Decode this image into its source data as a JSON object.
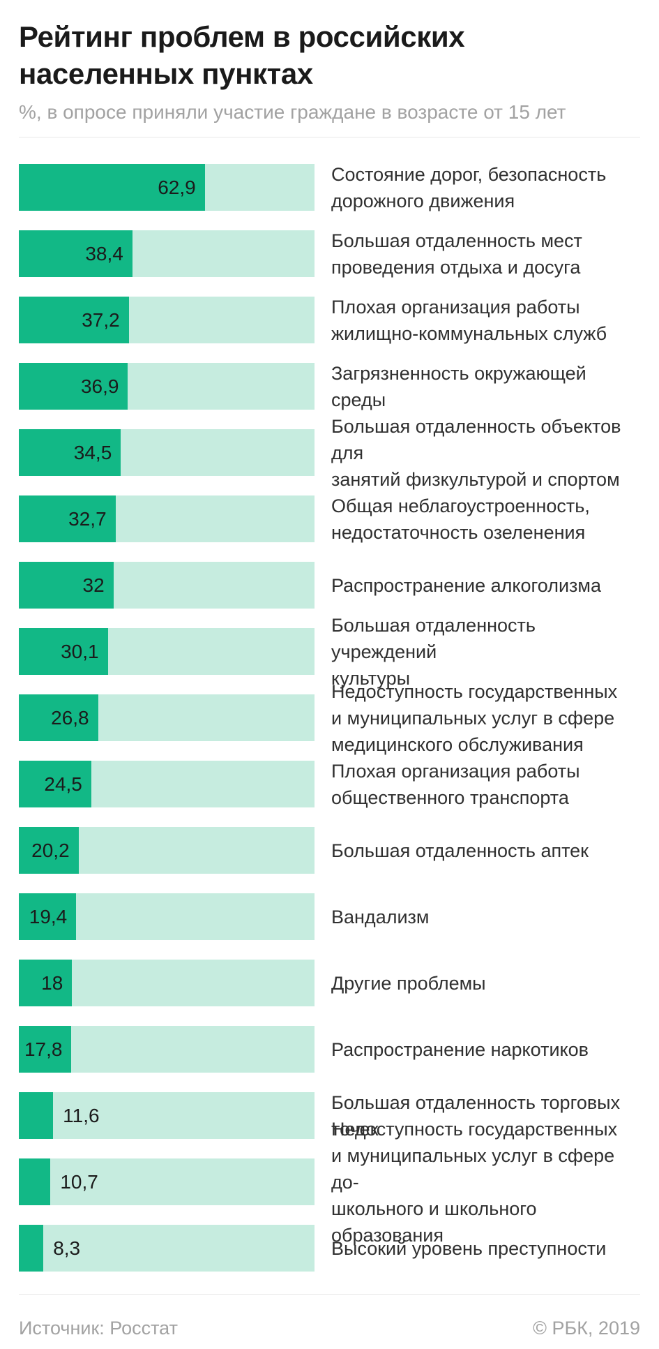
{
  "header": {
    "title": "Рейтинг проблем в российских населенных пунктах",
    "subtitle": "%, в опросе приняли участие граждане в возрасте от 15 лет"
  },
  "footer": {
    "source": "Источник: Росстат",
    "copyright": "© РБК, 2019"
  },
  "colors": {
    "bar_fill": "#12b886",
    "bar_track": "#c6ecdf",
    "title_text": "#1a1a1a",
    "category_text": "#303030",
    "muted_text": "#a2a2a2",
    "divider": "#e7e7e7"
  },
  "chart_data": {
    "type": "bar",
    "orientation": "horizontal",
    "title": "Рейтинг проблем в российских населенных пунктах",
    "subtitle": "%, в опросе приняли участие граждане в возрасте от 15 лет",
    "unit": "%",
    "xlabel": "",
    "ylabel": "",
    "xlim": [
      0,
      100
    ],
    "grid": false,
    "legend": false,
    "value_axis_hidden": true,
    "categories": [
      "Состояние дорог, безопасность дорожного движения",
      "Большая отдаленность мест проведения отдыха и досуга",
      "Плохая организация работы жилищно-коммунальных служб",
      "Загрязненность окружающей среды",
      "Большая отдаленность объектов для занятий физкультурой и спортом",
      "Общая неблагоустроенность, недостаточность озеленения",
      "Распространение алкоголизма",
      "Большая отдаленность учреждений культуры",
      "Недоступность государственных и муниципальных услуг в сфере медицинского обслуживания",
      "Плохая организация работы общественного транспорта",
      "Большая отдаленность аптек",
      "Вандализм",
      "Другие проблемы",
      "Распространение наркотиков",
      "Большая отдаленность торговых точек",
      "Недоступность государственных и муниципальных услуг в сфере дошкольного и школьного образования",
      "Высокий уровень преступности"
    ],
    "values": [
      62.9,
      38.4,
      37.2,
      36.9,
      34.5,
      32.7,
      32,
      30.1,
      26.8,
      24.5,
      20.2,
      19.4,
      18,
      17.8,
      11.6,
      10.7,
      8.3
    ],
    "bars": [
      {
        "value": 62.9,
        "value_label": "62,9",
        "label_lines": [
          "Состояние дорог, безопасность",
          "дорожного движения"
        ]
      },
      {
        "value": 38.4,
        "value_label": "38,4",
        "label_lines": [
          "Большая отдаленность мест",
          "проведения отдыха и досуга"
        ]
      },
      {
        "value": 37.2,
        "value_label": "37,2",
        "label_lines": [
          "Плохая организация работы",
          "жилищно-коммунальных служб"
        ]
      },
      {
        "value": 36.9,
        "value_label": "36,9",
        "label_lines": [
          "Загрязненность окружающей среды"
        ]
      },
      {
        "value": 34.5,
        "value_label": "34,5",
        "label_lines": [
          "Большая отдаленность объектов для",
          "занятий физкультурой и спортом"
        ]
      },
      {
        "value": 32.7,
        "value_label": "32,7",
        "label_lines": [
          "Общая неблагоустроенность,",
          "недостаточность озеленения"
        ]
      },
      {
        "value": 32,
        "value_label": "32",
        "label_lines": [
          "Распространение алкоголизма"
        ]
      },
      {
        "value": 30.1,
        "value_label": "30,1",
        "label_lines": [
          "Большая отдаленность учреждений",
          "культуры"
        ]
      },
      {
        "value": 26.8,
        "value_label": "26,8",
        "label_lines": [
          "Недоступность государственных",
          "и муниципальных услуг в сфере",
          "медицинского обслуживания"
        ]
      },
      {
        "value": 24.5,
        "value_label": "24,5",
        "label_lines": [
          "Плохая организация работы",
          "общественного транспорта"
        ]
      },
      {
        "value": 20.2,
        "value_label": "20,2",
        "label_lines": [
          "Большая отдаленность аптек"
        ]
      },
      {
        "value": 19.4,
        "value_label": "19,4",
        "label_lines": [
          "Вандализм"
        ]
      },
      {
        "value": 18,
        "value_label": "18",
        "label_lines": [
          "Другие проблемы"
        ]
      },
      {
        "value": 17.8,
        "value_label": "17,8",
        "label_lines": [
          "Распространение наркотиков"
        ]
      },
      {
        "value": 11.6,
        "value_label": "11,6",
        "label_lines": [
          "Большая отдаленность торговых",
          "точек"
        ]
      },
      {
        "value": 10.7,
        "value_label": "10,7",
        "label_lines": [
          "Недоступность государственных",
          "и муниципальных услуг в сфере до-",
          "школьного и школьного образования"
        ]
      },
      {
        "value": 8.3,
        "value_label": "8,3",
        "label_lines": [
          "Высокий уровень преступности"
        ]
      }
    ]
  }
}
